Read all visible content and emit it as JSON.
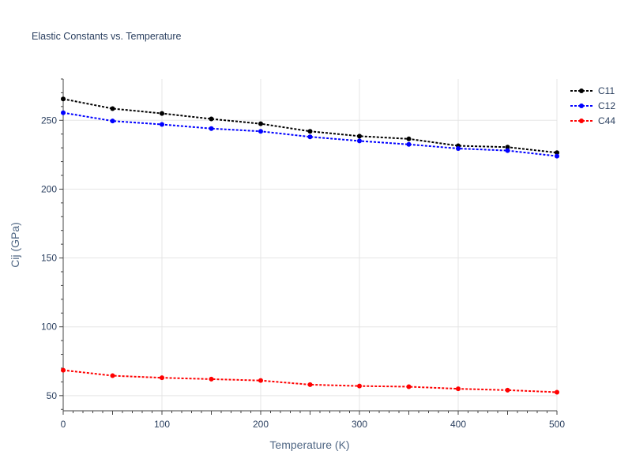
{
  "chart_data": {
    "type": "line",
    "title": "Elastic Constants vs. Temperature",
    "xlabel": "Temperature (K)",
    "ylabel": "Cij (GPa)",
    "xlim": [
      0,
      500
    ],
    "ylim": [
      39,
      280
    ],
    "x_ticks": [
      0,
      100,
      200,
      300,
      400,
      500
    ],
    "y_ticks": [
      50,
      100,
      150,
      200,
      250
    ],
    "grid": true,
    "legend_position": "top-right",
    "x": [
      0,
      50,
      100,
      150,
      200,
      250,
      300,
      350,
      400,
      450,
      500
    ],
    "series": [
      {
        "name": "C11",
        "color": "#000000",
        "values": [
          265.5,
          258.5,
          255,
          251,
          247.5,
          242,
          238.5,
          236.5,
          231.5,
          230.5,
          226.5
        ]
      },
      {
        "name": "C12",
        "color": "#0000ff",
        "values": [
          255.5,
          249.5,
          247,
          244,
          242,
          238,
          235,
          232.5,
          229.5,
          228,
          224
        ]
      },
      {
        "name": "C44",
        "color": "#ff0000",
        "values": [
          68.5,
          64.5,
          63,
          62,
          61,
          58,
          57,
          56.5,
          55,
          54,
          52.5
        ]
      }
    ]
  }
}
